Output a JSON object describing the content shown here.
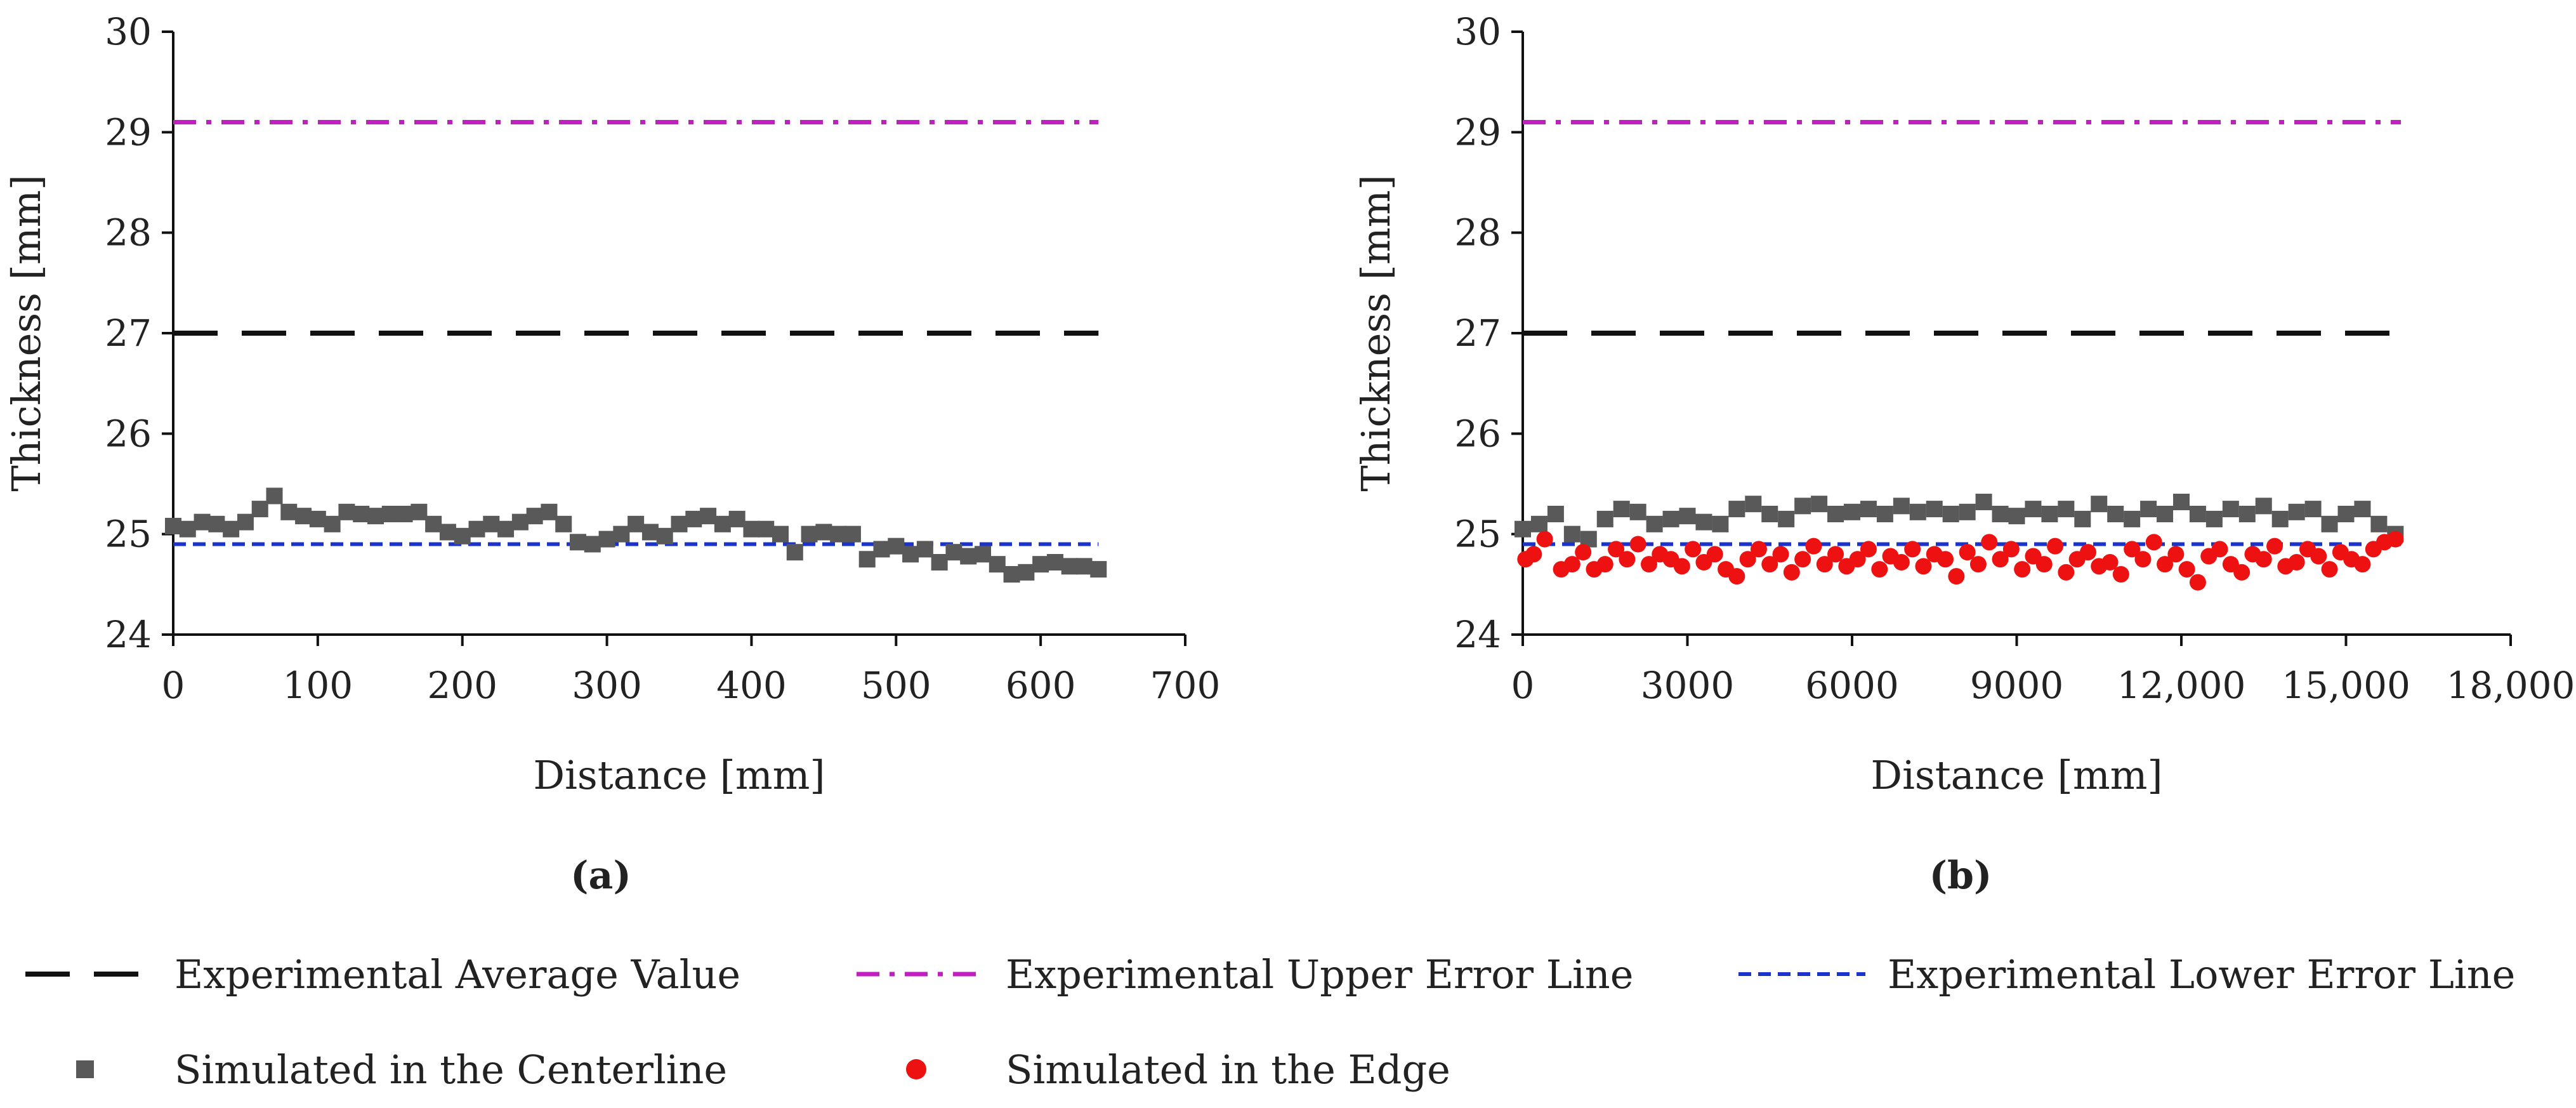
{
  "chart_data": [
    {
      "panel_label": "(a)",
      "type": "scatter",
      "xlabel": "Distance [mm]",
      "ylabel": "Thickness [mm]",
      "xlim": [
        0,
        700
      ],
      "ylim": [
        24,
        30
      ],
      "xticks": [
        0,
        100,
        200,
        300,
        400,
        500,
        600,
        700
      ],
      "xtick_labels": [
        "0",
        "100",
        "200",
        "300",
        "400",
        "500",
        "600",
        "700"
      ],
      "yticks": [
        24,
        25,
        26,
        27,
        28,
        29,
        30
      ],
      "ytick_labels": [
        "24",
        "25",
        "26",
        "27",
        "28",
        "29",
        "30"
      ],
      "reference_lines": [
        {
          "name": "Experimental Average Value",
          "y": 27.0,
          "x_range": [
            0,
            640
          ],
          "color": "#111111",
          "style": "long-dash"
        },
        {
          "name": "Experimental Upper Error Line",
          "y": 29.1,
          "x_range": [
            0,
            640
          ],
          "color": "#c020c0",
          "style": "dash-dot"
        },
        {
          "name": "Experimental Lower Error Line",
          "y": 24.9,
          "x_range": [
            0,
            640
          ],
          "color": "#1a33cc",
          "style": "short-dash"
        }
      ],
      "series": [
        {
          "name": "Simulated in the Centerline",
          "marker": "square",
          "color": "#595959",
          "x": [
            0,
            10,
            20,
            30,
            40,
            50,
            60,
            70,
            80,
            90,
            100,
            110,
            120,
            130,
            140,
            150,
            160,
            170,
            180,
            190,
            200,
            210,
            220,
            230,
            240,
            250,
            260,
            270,
            280,
            290,
            300,
            310,
            320,
            330,
            340,
            350,
            360,
            370,
            380,
            390,
            400,
            410,
            420,
            430,
            440,
            450,
            460,
            470,
            480,
            490,
            500,
            510,
            520,
            530,
            540,
            550,
            560,
            570,
            580,
            590,
            600,
            610,
            620,
            630,
            640
          ],
          "y": [
            25.08,
            25.05,
            25.12,
            25.1,
            25.05,
            25.12,
            25.25,
            25.38,
            25.22,
            25.18,
            25.15,
            25.1,
            25.22,
            25.2,
            25.18,
            25.2,
            25.2,
            25.22,
            25.1,
            25.02,
            24.98,
            25.05,
            25.1,
            25.05,
            25.12,
            25.18,
            25.22,
            25.1,
            24.92,
            24.9,
            24.95,
            25.0,
            25.1,
            25.02,
            24.98,
            25.1,
            25.15,
            25.18,
            25.1,
            25.15,
            25.05,
            25.05,
            25.0,
            24.82,
            25.0,
            25.02,
            25.0,
            25.0,
            24.75,
            24.85,
            24.88,
            24.8,
            24.85,
            24.72,
            24.82,
            24.78,
            24.8,
            24.7,
            24.6,
            24.62,
            24.7,
            24.72,
            24.68,
            24.68,
            24.65
          ]
        }
      ]
    },
    {
      "panel_label": "(b)",
      "type": "scatter",
      "xlabel": "Distance [mm]",
      "ylabel": "Thickness [mm]",
      "xlim": [
        0,
        18000
      ],
      "ylim": [
        24,
        30
      ],
      "xticks": [
        0,
        3000,
        6000,
        9000,
        12000,
        15000,
        18000
      ],
      "xtick_labels": [
        "0",
        "3000",
        "6000",
        "9000",
        "12,000",
        "15,000",
        "18,000"
      ],
      "yticks": [
        24,
        25,
        26,
        27,
        28,
        29,
        30
      ],
      "ytick_labels": [
        "24",
        "25",
        "26",
        "27",
        "28",
        "29",
        "30"
      ],
      "reference_lines": [
        {
          "name": "Experimental Average Value",
          "y": 27.0,
          "x_range": [
            0,
            16000
          ],
          "color": "#111111",
          "style": "long-dash"
        },
        {
          "name": "Experimental Upper Error Line",
          "y": 29.1,
          "x_range": [
            0,
            16000
          ],
          "color": "#c020c0",
          "style": "dash-dot"
        },
        {
          "name": "Experimental Lower Error Line",
          "y": 24.9,
          "x_range": [
            0,
            16000
          ],
          "color": "#1a33cc",
          "style": "short-dash"
        }
      ],
      "series": [
        {
          "name": "Simulated in the Centerline",
          "marker": "square",
          "color": "#595959",
          "x": [
            0,
            300,
            600,
            900,
            1200,
            1500,
            1800,
            2100,
            2400,
            2700,
            3000,
            3300,
            3600,
            3900,
            4200,
            4500,
            4800,
            5100,
            5400,
            5700,
            6000,
            6300,
            6600,
            6900,
            7200,
            7500,
            7800,
            8100,
            8400,
            8700,
            9000,
            9300,
            9600,
            9900,
            10200,
            10500,
            10800,
            11100,
            11400,
            11700,
            12000,
            12300,
            12600,
            12900,
            13200,
            13500,
            13800,
            14100,
            14400,
            14700,
            15000,
            15300,
            15600,
            15900
          ],
          "y": [
            25.05,
            25.1,
            25.2,
            25.0,
            24.95,
            25.15,
            25.25,
            25.22,
            25.1,
            25.15,
            25.18,
            25.12,
            25.1,
            25.25,
            25.3,
            25.2,
            25.15,
            25.28,
            25.3,
            25.2,
            25.22,
            25.25,
            25.2,
            25.28,
            25.22,
            25.25,
            25.2,
            25.22,
            25.32,
            25.2,
            25.18,
            25.25,
            25.2,
            25.25,
            25.15,
            25.3,
            25.2,
            25.15,
            25.25,
            25.2,
            25.32,
            25.2,
            25.15,
            25.25,
            25.2,
            25.28,
            25.15,
            25.22,
            25.25,
            25.1,
            25.2,
            25.25,
            25.1,
            25.0
          ]
        },
        {
          "name": "Simulated in the Edge",
          "marker": "circle",
          "color": "#ee1111",
          "x": [
            50,
            200,
            400,
            700,
            900,
            1100,
            1300,
            1500,
            1700,
            1900,
            2100,
            2300,
            2500,
            2700,
            2900,
            3100,
            3300,
            3500,
            3700,
            3900,
            4100,
            4300,
            4500,
            4700,
            4900,
            5100,
            5300,
            5500,
            5700,
            5900,
            6100,
            6300,
            6500,
            6700,
            6900,
            7100,
            7300,
            7500,
            7700,
            7900,
            8100,
            8300,
            8500,
            8700,
            8900,
            9100,
            9300,
            9500,
            9700,
            9900,
            10100,
            10300,
            10500,
            10700,
            10900,
            11100,
            11300,
            11500,
            11700,
            11900,
            12100,
            12300,
            12500,
            12700,
            12900,
            13100,
            13300,
            13500,
            13700,
            13900,
            14100,
            14300,
            14500,
            14700,
            14900,
            15100,
            15300,
            15500,
            15700,
            15900
          ],
          "y": [
            24.75,
            24.8,
            24.95,
            24.65,
            24.7,
            24.82,
            24.65,
            24.7,
            24.85,
            24.75,
            24.9,
            24.7,
            24.8,
            24.75,
            24.68,
            24.85,
            24.72,
            24.8,
            24.65,
            24.58,
            24.75,
            24.85,
            24.7,
            24.8,
            24.62,
            24.75,
            24.88,
            24.7,
            24.8,
            24.68,
            24.75,
            24.85,
            24.65,
            24.78,
            24.72,
            24.85,
            24.68,
            24.8,
            24.75,
            24.58,
            24.82,
            24.7,
            24.92,
            24.75,
            24.85,
            24.65,
            24.78,
            24.7,
            24.88,
            24.62,
            24.75,
            24.82,
            24.68,
            24.72,
            24.6,
            24.85,
            24.75,
            24.92,
            24.7,
            24.8,
            24.65,
            24.52,
            24.78,
            24.85,
            24.7,
            24.62,
            24.8,
            24.75,
            24.88,
            24.68,
            24.72,
            24.85,
            24.78,
            24.65,
            24.82,
            24.75,
            24.7,
            24.85,
            24.92,
            24.95
          ]
        }
      ]
    }
  ],
  "legend": [
    {
      "label": "Experimental Average Value",
      "kind": "line",
      "style": "long-dash",
      "color": "#111111"
    },
    {
      "label": "Experimental Upper Error Line",
      "kind": "line",
      "style": "dash-dot",
      "color": "#c020c0"
    },
    {
      "label": "Experimental Lower Error Line",
      "kind": "line",
      "style": "short-dash",
      "color": "#1a33cc"
    },
    {
      "label": "Simulated in the Centerline",
      "kind": "marker",
      "marker": "square",
      "color": "#595959"
    },
    {
      "label": "Simulated in the Edge",
      "kind": "marker",
      "marker": "circle",
      "color": "#ee1111"
    }
  ]
}
